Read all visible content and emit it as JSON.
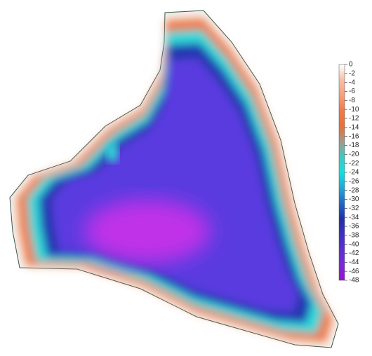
{
  "colorbar": {
    "ticks": [
      0,
      -2,
      -4,
      -6,
      -8,
      -10,
      -12,
      -14,
      -16,
      -18,
      -20,
      -22,
      -24,
      -26,
      -28,
      -30,
      -32,
      -34,
      -36,
      -38,
      -40,
      -42,
      -44,
      -46,
      -48
    ],
    "colors": [
      "#ffffff",
      "#f6c0a8",
      "#f6a07a",
      "#f07a48",
      "#e8703a",
      "#a09a8a",
      "#40c8c0",
      "#10e0e0",
      "#20a8d8",
      "#2068c8",
      "#2030a8",
      "#3a30c0",
      "#5a30d0",
      "#7828d8",
      "#9a10d0"
    ]
  }
}
